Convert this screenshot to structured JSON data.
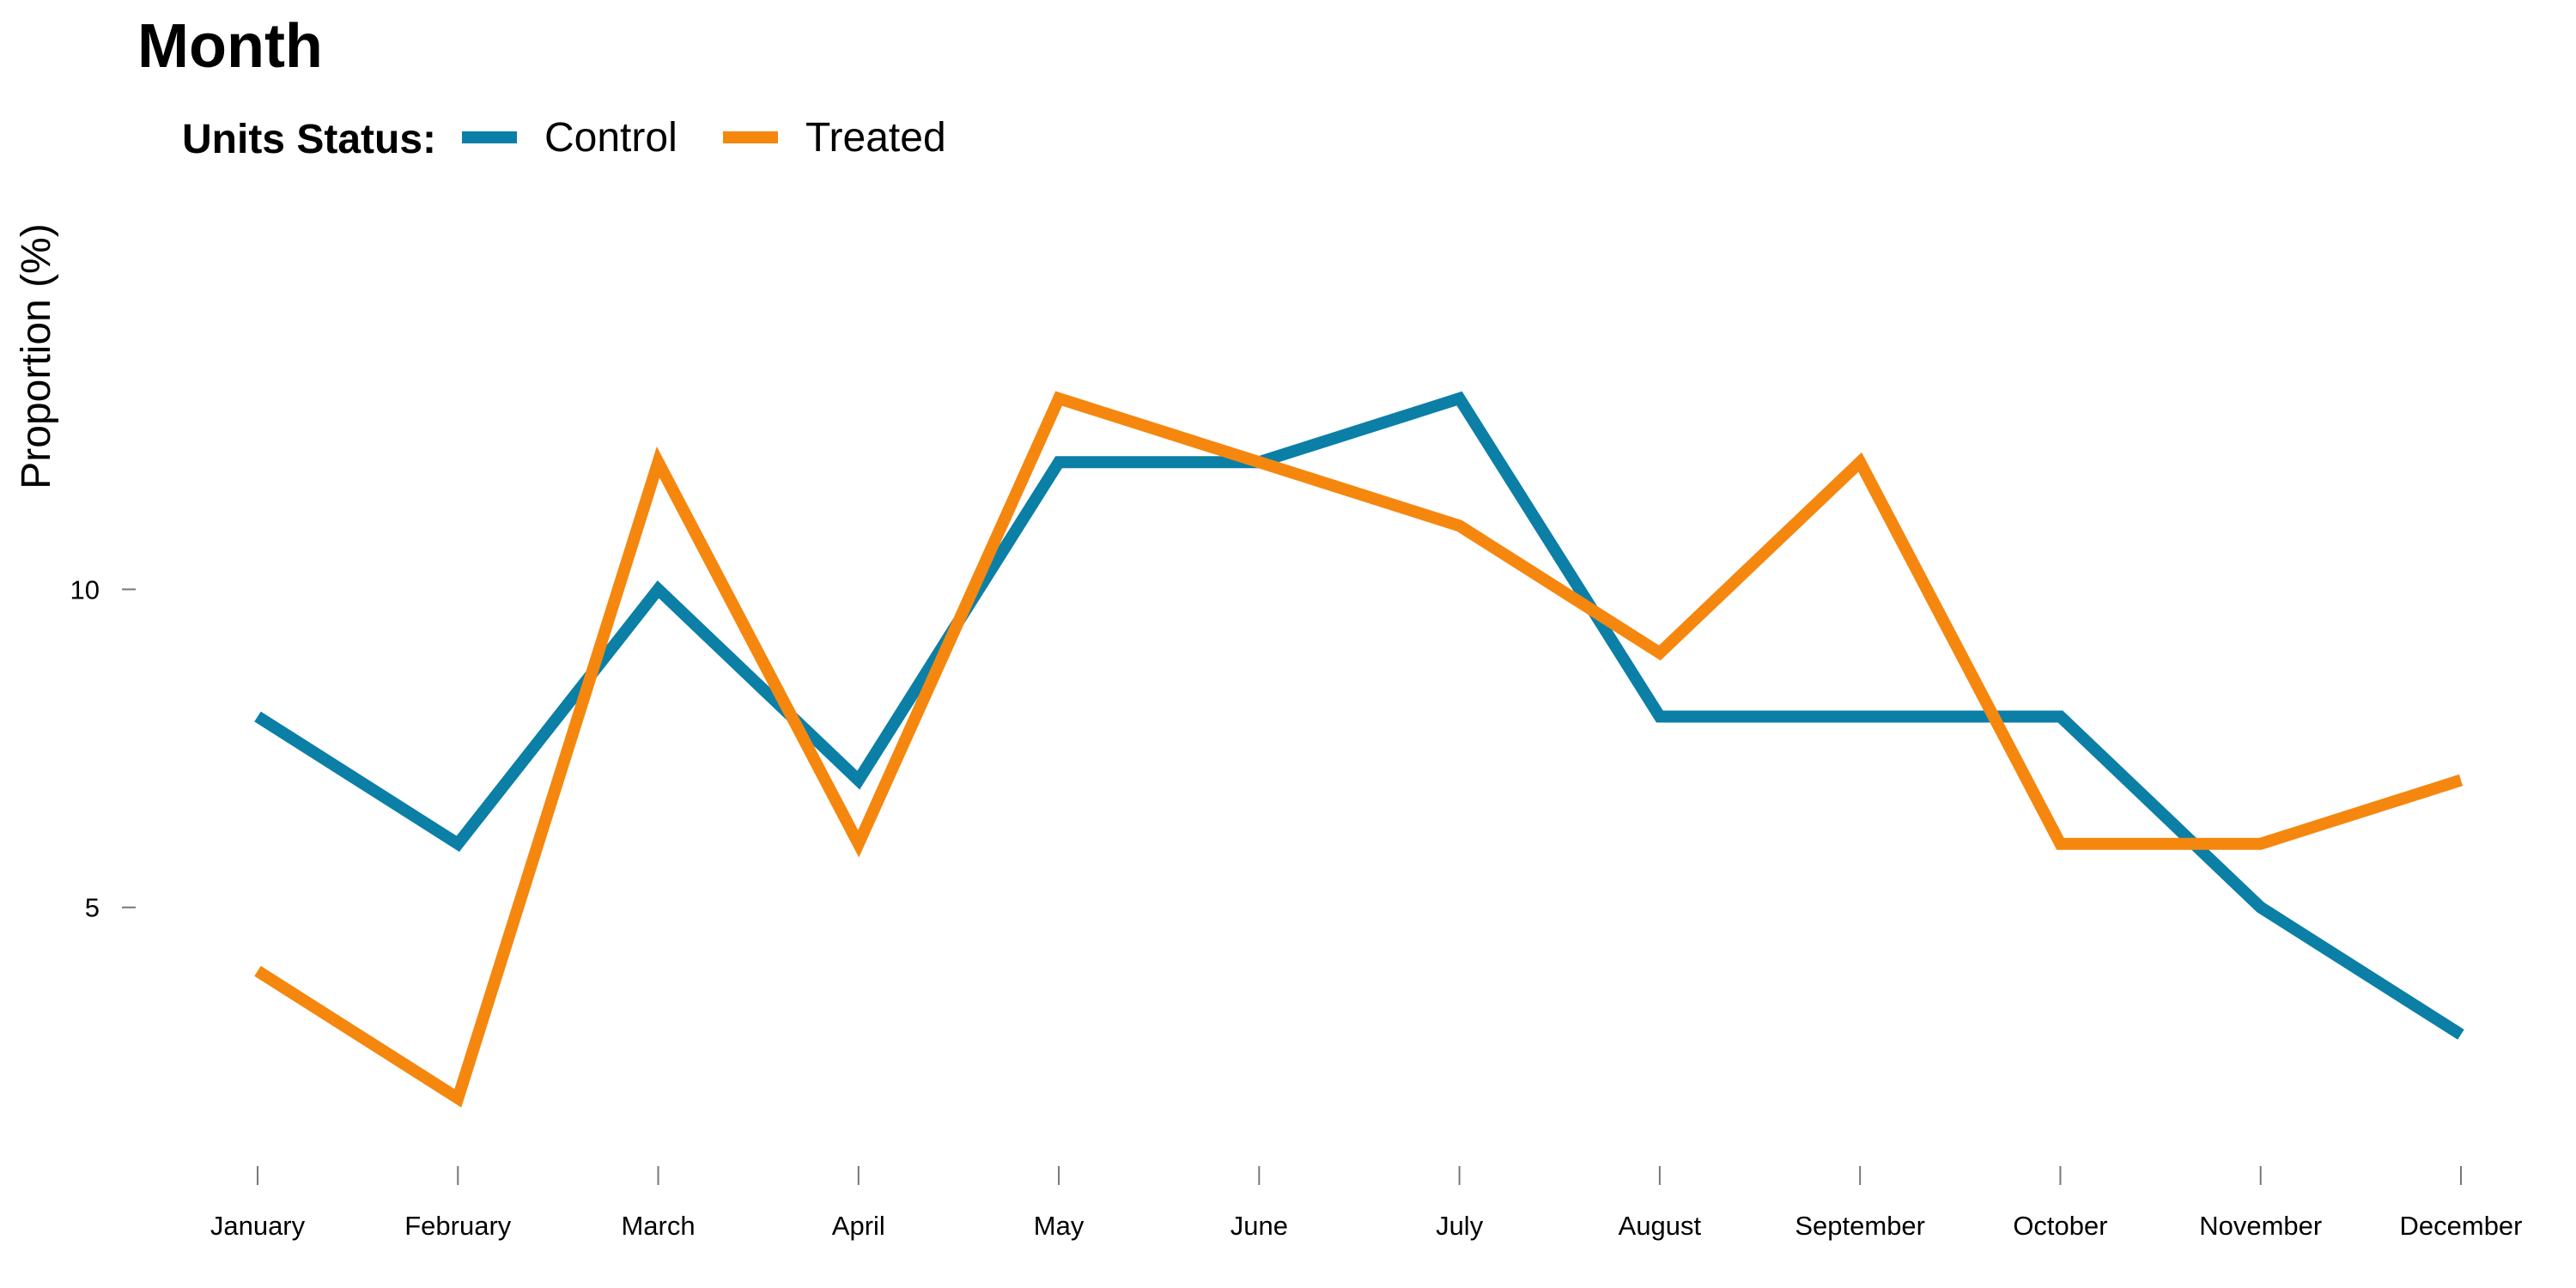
{
  "chart_data": {
    "type": "line",
    "title": "Month",
    "xlabel": "",
    "ylabel": "Proportion (%)",
    "legend_title": "Units Status:",
    "legend_position": "top-left",
    "grid": false,
    "categories": [
      "January",
      "February",
      "March",
      "April",
      "May",
      "June",
      "July",
      "August",
      "September",
      "October",
      "November",
      "December"
    ],
    "yticks": [
      5,
      10
    ],
    "ylim": [
      1.5,
      15
    ],
    "series": [
      {
        "name": "Control",
        "color": "#0b7fa6",
        "values": [
          8,
          6,
          10,
          7,
          12,
          12,
          13,
          8,
          8,
          8,
          5,
          3
        ]
      },
      {
        "name": "Treated",
        "color": "#f5870f",
        "values": [
          4,
          2,
          12,
          6,
          13,
          12,
          11,
          9,
          12,
          6,
          6,
          7
        ]
      }
    ]
  }
}
